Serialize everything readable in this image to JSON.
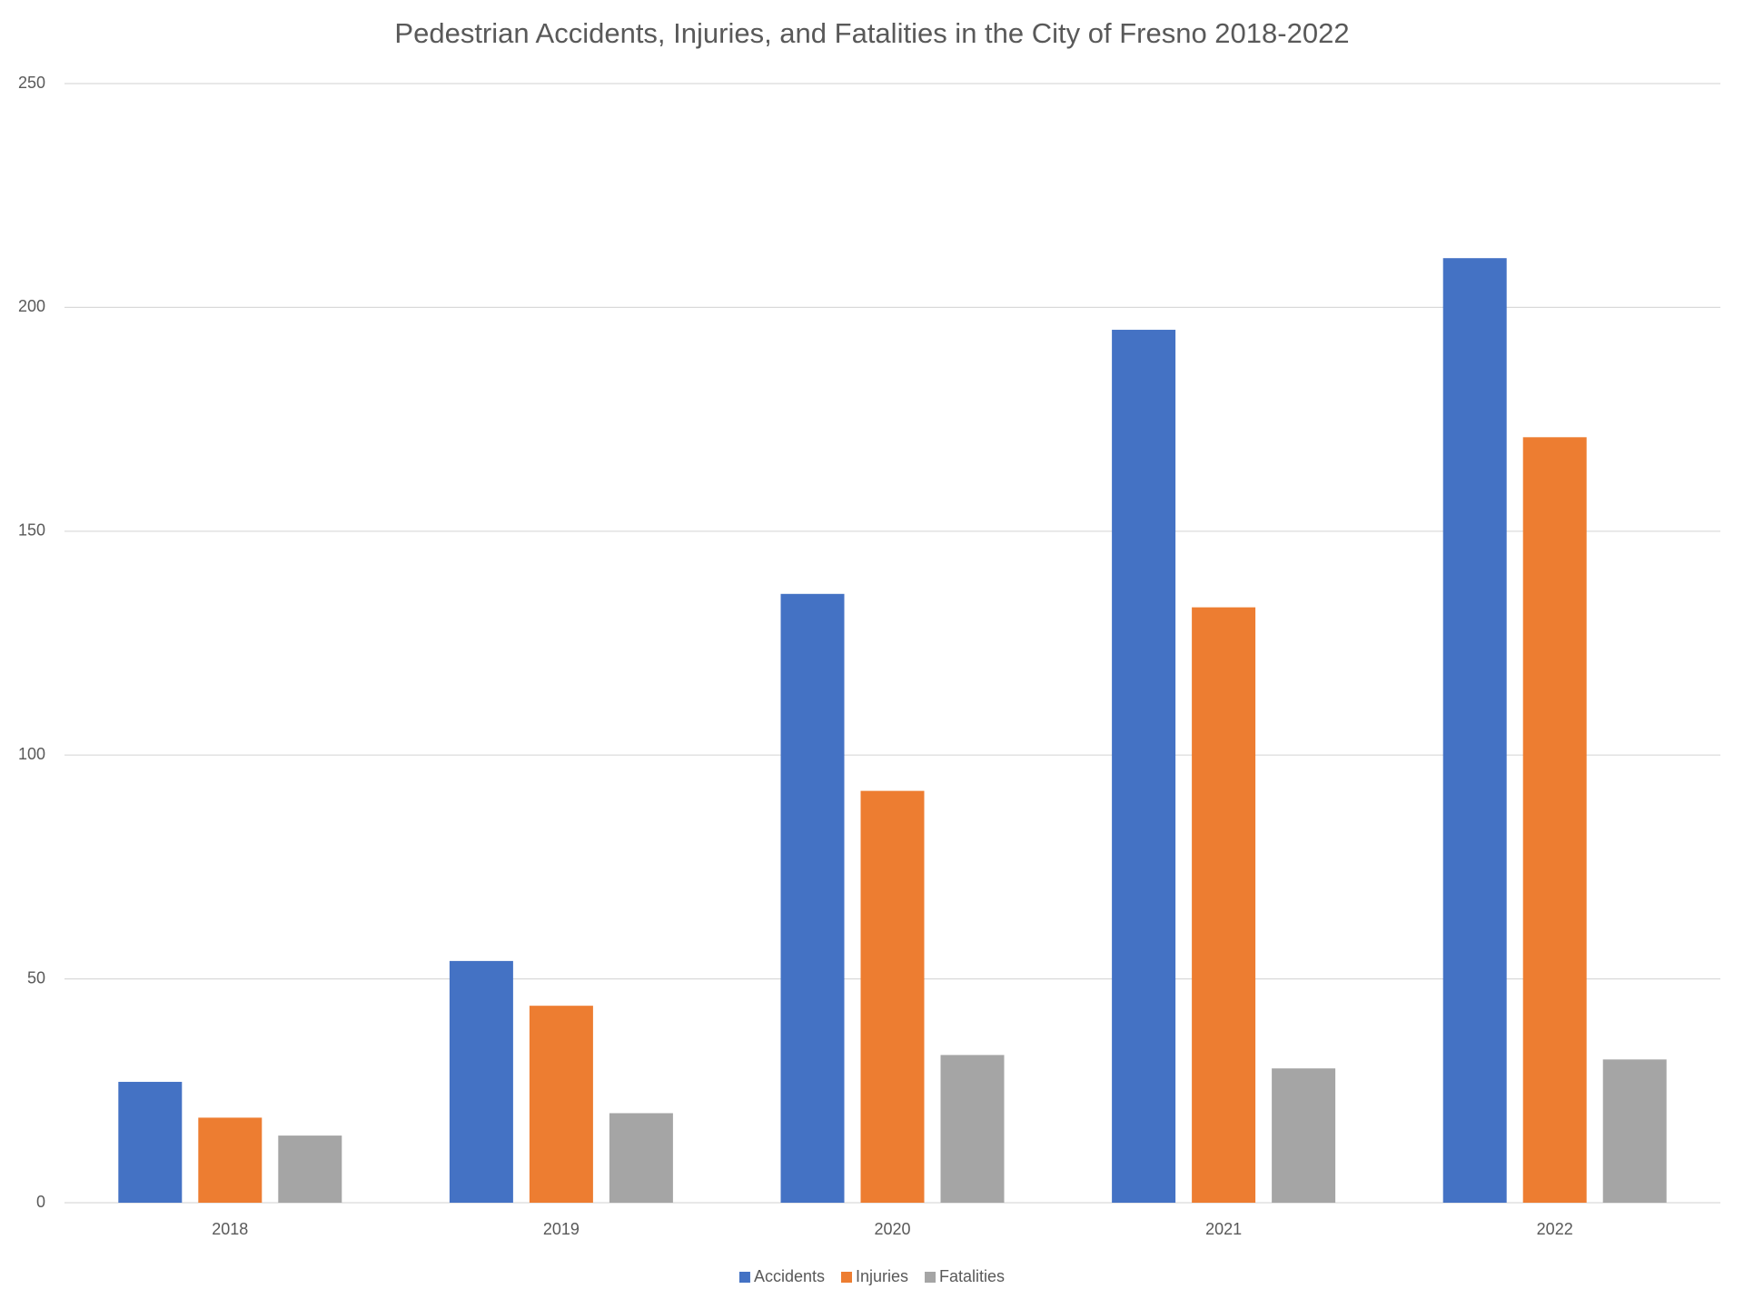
{
  "chart_data": {
    "type": "bar",
    "title": "Pedestrian Accidents, Injuries, and Fatalities in the City of Fresno 2018-2022",
    "categories": [
      "2018",
      "2019",
      "2020",
      "2021",
      "2022"
    ],
    "series": [
      {
        "name": "Accidents",
        "color": "#4472c4",
        "values": [
          27,
          54,
          136,
          195,
          211
        ]
      },
      {
        "name": "Injuries",
        "color": "#ed7d31",
        "values": [
          19,
          44,
          92,
          133,
          171
        ]
      },
      {
        "name": "Fatalities",
        "color": "#a5a5a5",
        "values": [
          15,
          20,
          33,
          30,
          32
        ]
      }
    ],
    "ylim": [
      0,
      250
    ],
    "yticks": [
      0,
      50,
      100,
      150,
      200,
      250
    ],
    "grid": true,
    "legend": "bottom"
  }
}
